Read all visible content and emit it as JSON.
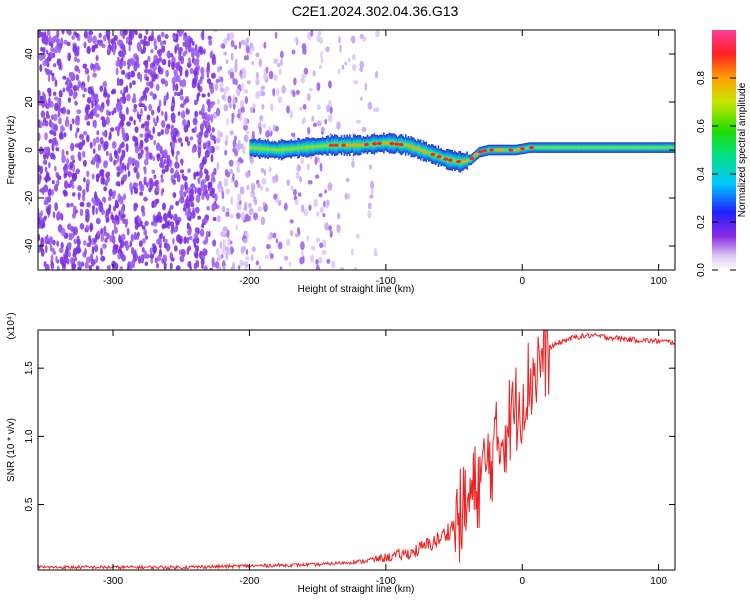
{
  "title": "C2E1.2024.302.04.36.G13",
  "chart_data": [
    {
      "type": "heatmap",
      "xlabel": "Height of straight line (km)",
      "ylabel": "Frequency (Hz)",
      "xlim": [
        -355,
        112
      ],
      "ylim": [
        -50,
        50
      ],
      "x_ticks": [
        "-300",
        "-200",
        "-100",
        "0",
        "100"
      ],
      "y_ticks": [
        "-40",
        "-20",
        "0",
        "20",
        "40"
      ],
      "colorbar": {
        "label": "Normalized spectral amplitude",
        "range": [
          0,
          1
        ],
        "ticks": [
          "0.0",
          "0.2",
          "0.4",
          "0.6",
          "0.8"
        ]
      },
      "ridge_frequency": {
        "x": [
          -200,
          -180,
          -160,
          -140,
          -120,
          -100,
          -85,
          -75,
          -65,
          -55,
          -45,
          -38,
          -32,
          -25,
          -15,
          -5,
          5,
          20,
          40,
          60,
          80,
          112
        ],
        "y": [
          1,
          0,
          1,
          2,
          2,
          3,
          2,
          0,
          -2,
          -4,
          -5,
          -4,
          -1,
          0,
          0,
          0,
          1,
          1,
          1,
          1,
          1,
          1
        ]
      },
      "grid": false
    },
    {
      "type": "line",
      "xlabel": "Height of straight line (km)",
      "ylabel": "SNR (10 * v/v)",
      "y_multiplier": "(x10⁴)",
      "xlim": [
        -355,
        112
      ],
      "ylim": [
        0.02,
        1.78
      ],
      "x_ticks": [
        "-300",
        "-200",
        "-100",
        "0",
        "100"
      ],
      "y_ticks": [
        "0.5",
        "1.0",
        "1.5"
      ],
      "color": "#ee2222",
      "x": [
        -355,
        -300,
        -250,
        -200,
        -150,
        -120,
        -100,
        -80,
        -60,
        -50,
        -40,
        -30,
        -20,
        -15,
        -10,
        -5,
        0,
        5,
        10,
        15,
        20,
        30,
        40,
        50,
        60,
        80,
        112
      ],
      "y": [
        0.04,
        0.04,
        0.04,
        0.05,
        0.06,
        0.08,
        0.11,
        0.15,
        0.25,
        0.35,
        0.5,
        0.7,
        0.9,
        1.0,
        1.1,
        1.2,
        1.3,
        1.4,
        1.5,
        1.58,
        1.65,
        1.7,
        1.73,
        1.74,
        1.73,
        1.71,
        1.69
      ],
      "grid": false
    }
  ]
}
